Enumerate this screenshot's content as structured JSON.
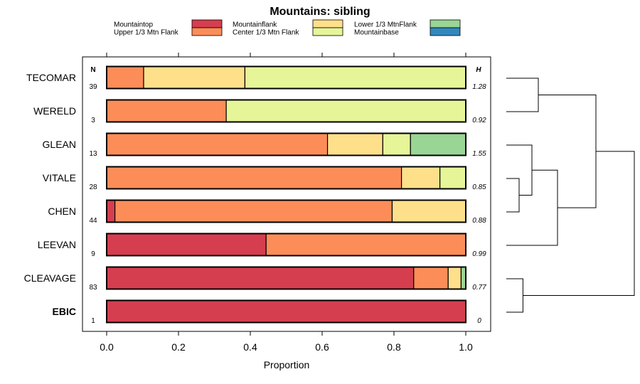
{
  "chart_data": {
    "type": "bar",
    "orientation": "horizontal",
    "stacked": true,
    "title": "Mountains: sibling",
    "xlabel": "Proportion",
    "ylabel": "",
    "xlim": [
      0,
      1
    ],
    "xticks": [
      0.0,
      0.2,
      0.4,
      0.6,
      0.8,
      1.0
    ],
    "xtick_labels": [
      "0.0",
      "0.2",
      "0.4",
      "0.6",
      "0.8",
      "1.0"
    ],
    "n_header": "N",
    "h_header": "H",
    "legend": [
      {
        "label": "Mountaintop",
        "color": "#d53e4f"
      },
      {
        "label": "Upper 1/3 Mtn Flank",
        "color": "#fc8d59"
      },
      {
        "label": "Mountainflank",
        "color": "#fee08b"
      },
      {
        "label": "Center 1/3 Mtn Flank",
        "color": "#e6f598"
      },
      {
        "label": "Lower 1/3 MtnFlank",
        "color": "#99d594"
      },
      {
        "label": "Mountainbase",
        "color": "#3288bd"
      }
    ],
    "series_order": [
      "Mountaintop",
      "Upper 1/3 Mtn Flank",
      "Mountainflank",
      "Center 1/3 Mtn Flank",
      "Lower 1/3 MtnFlank",
      "Mountainbase"
    ],
    "rows": [
      {
        "label": "TECOMAR",
        "n": "39",
        "h": "1.28",
        "bold": false,
        "values": [
          0,
          0.103,
          0.282,
          0.615,
          0,
          0
        ]
      },
      {
        "label": "WERELD",
        "n": "3",
        "h": "0.92",
        "bold": false,
        "values": [
          0,
          0.333,
          0,
          0.667,
          0,
          0
        ]
      },
      {
        "label": "GLEAN",
        "n": "13",
        "h": "1.55",
        "bold": false,
        "values": [
          0,
          0.615,
          0.154,
          0.077,
          0.154,
          0
        ]
      },
      {
        "label": "VITALE",
        "n": "28",
        "h": "0.85",
        "bold": false,
        "values": [
          0,
          0.821,
          0.107,
          0.072,
          0,
          0
        ]
      },
      {
        "label": "CHEN",
        "n": "44",
        "h": "0.88",
        "bold": false,
        "values": [
          0.023,
          0.772,
          0.205,
          0,
          0,
          0
        ]
      },
      {
        "label": "LEEVAN",
        "n": "9",
        "h": "0.99",
        "bold": false,
        "values": [
          0.444,
          0.556,
          0,
          0,
          0,
          0
        ]
      },
      {
        "label": "CLEAVAGE",
        "n": "83",
        "h": "0.77",
        "bold": false,
        "values": [
          0.855,
          0.096,
          0.036,
          0,
          0.013,
          0
        ]
      },
      {
        "label": "EBIC",
        "n": "1",
        "h": "0",
        "bold": true,
        "values": [
          1.0,
          0,
          0,
          0,
          0,
          0
        ]
      }
    ],
    "dendrogram": {
      "type": "hierarchical-clustering",
      "merges": [
        {
          "id": "m1",
          "left": "TECOMAR",
          "right": "WERELD",
          "height": 0.25
        },
        {
          "id": "m2",
          "left": "VITALE",
          "right": "CHEN",
          "height": 0.1
        },
        {
          "id": "m3",
          "left": "GLEAN",
          "right": "m2",
          "height": 0.2
        },
        {
          "id": "m4",
          "left": "m3",
          "right": "LEEVAN",
          "height": 0.4
        },
        {
          "id": "m5",
          "left": "m1",
          "right": "m4",
          "height": 0.7
        },
        {
          "id": "m6",
          "left": "CLEAVAGE",
          "right": "EBIC",
          "height": 0.13
        },
        {
          "id": "m7",
          "left": "m5",
          "right": "m6",
          "height": 1.0
        }
      ]
    }
  }
}
